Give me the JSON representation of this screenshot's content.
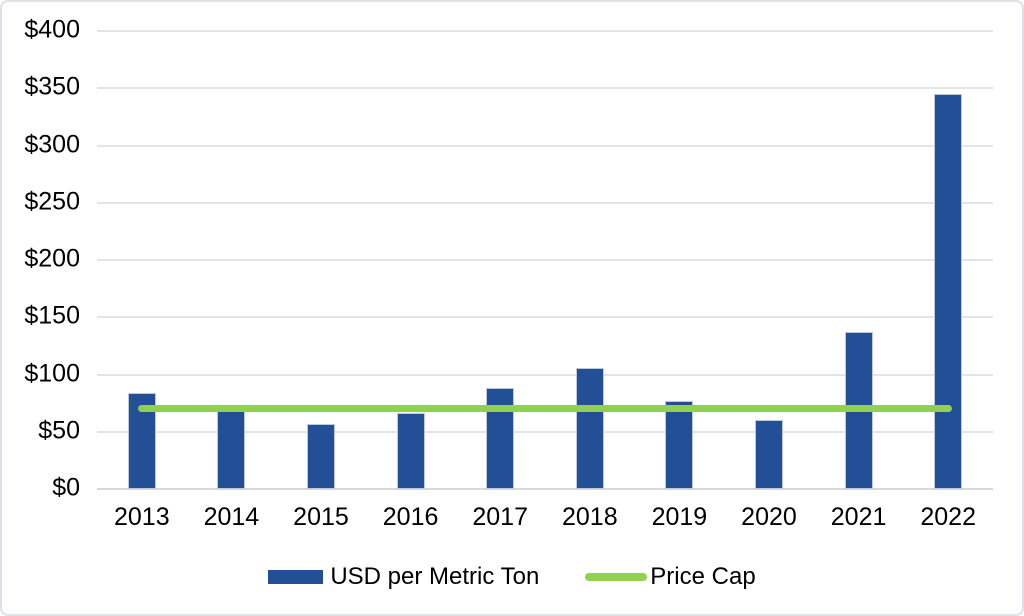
{
  "chart_data": {
    "type": "bar",
    "title": "",
    "categories": [
      "2013",
      "2014",
      "2015",
      "2016",
      "2017",
      "2018",
      "2019",
      "2020",
      "2021",
      "2022"
    ],
    "series": [
      {
        "name": "USD per Metric Ton",
        "type": "bar",
        "color": "#234F96",
        "values": [
          84,
          68,
          57,
          66,
          88,
          106,
          77,
          60,
          137,
          345
        ]
      },
      {
        "name": "Price Cap",
        "type": "line",
        "color": "#92D050",
        "values": [
          70,
          70,
          70,
          70,
          70,
          70,
          70,
          70,
          70,
          70
        ]
      }
    ],
    "y_axis": {
      "min": 0,
      "max": 400,
      "step": 50,
      "format": "$",
      "tick_values": [
        400,
        350,
        300,
        250,
        200,
        150,
        100,
        50,
        0
      ],
      "tick_labels": [
        "$400",
        "$350",
        "$300",
        "$250",
        "$200",
        "$150",
        "$100",
        "$50",
        "$0"
      ]
    },
    "x_axis": {
      "tick_labels": [
        "2013",
        "2014",
        "2015",
        "2016",
        "2017",
        "2018",
        "2019",
        "2020",
        "2021",
        "2022"
      ]
    },
    "legend": {
      "position": "bottom",
      "items": [
        "USD per Metric Ton",
        "Price Cap"
      ]
    },
    "grid": true,
    "colors": {
      "bar": "#234F96",
      "line": "#92D050",
      "gridline": "#E4E4E4",
      "axis_line": "#D8D8D8",
      "text": "#000000",
      "figure_border": "#DEE1E5",
      "background": "#FFFFFF"
    }
  }
}
